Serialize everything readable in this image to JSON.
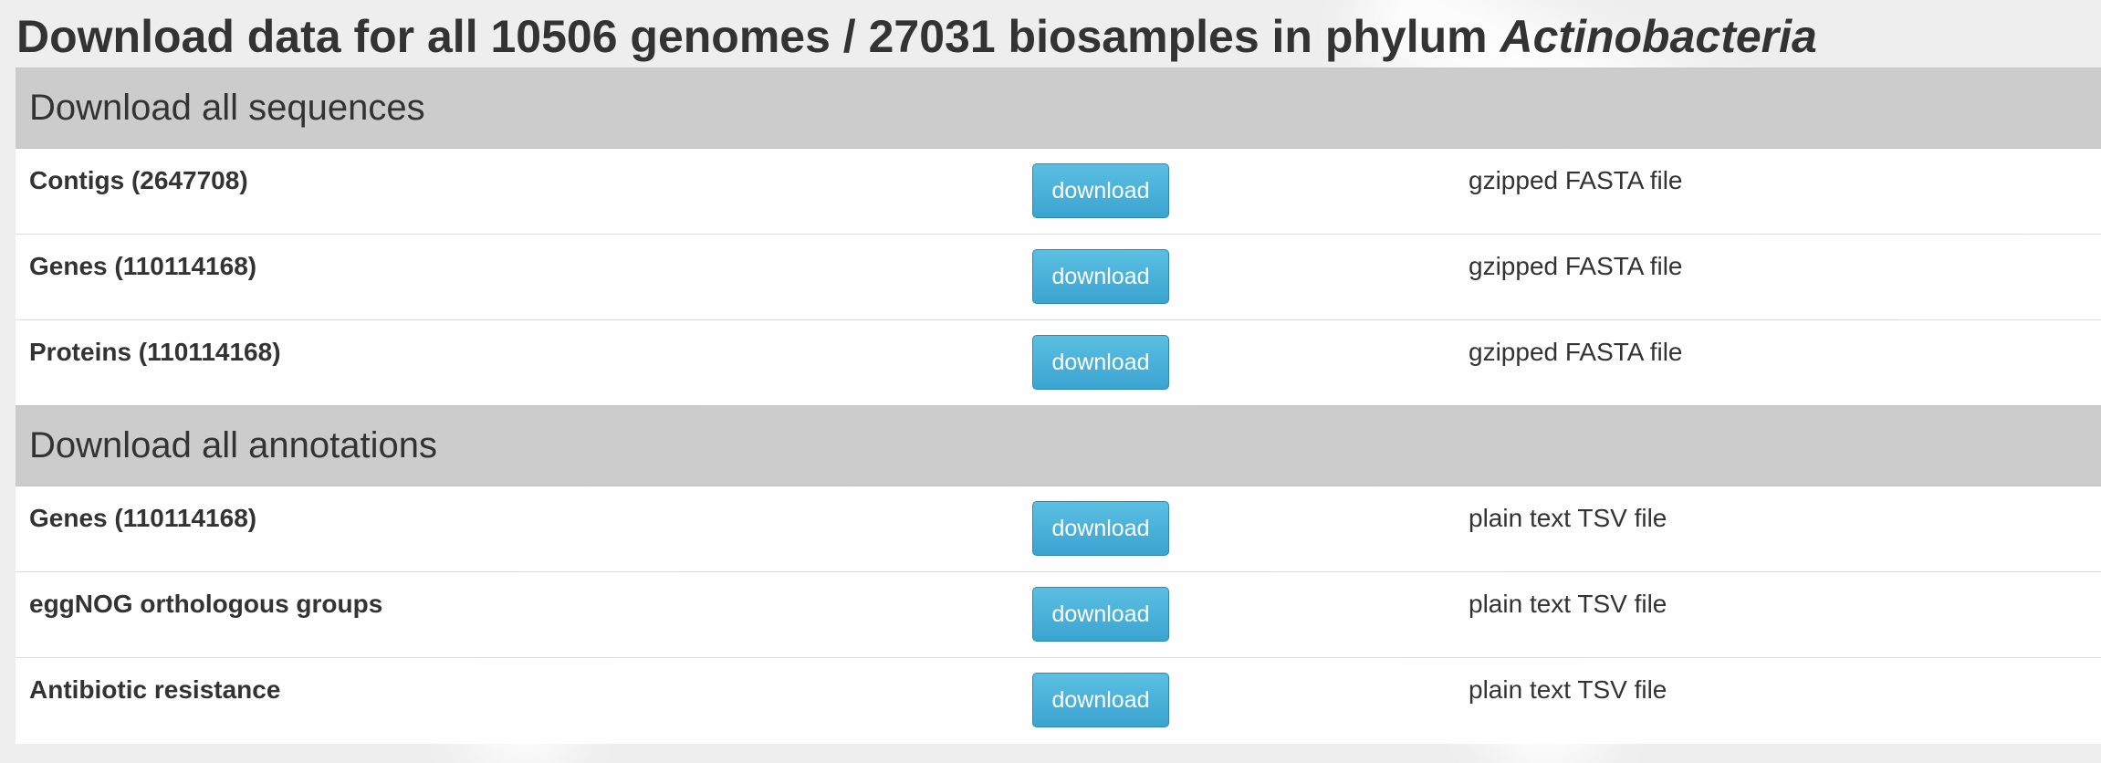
{
  "heading": {
    "prefix": "Download data for all 10506 genomes / 27031 biosamples in phylum ",
    "taxon": "Actinobacteria"
  },
  "sections": [
    {
      "title": "Download all sequences",
      "rows": [
        {
          "label": "Contigs (2647708)",
          "button": "download",
          "format": "gzipped FASTA file"
        },
        {
          "label": "Genes (110114168)",
          "button": "download",
          "format": "gzipped FASTA file"
        },
        {
          "label": "Proteins (110114168)",
          "button": "download",
          "format": "gzipped FASTA file"
        }
      ]
    },
    {
      "title": "Download all annotations",
      "rows": [
        {
          "label": "Genes (110114168)",
          "button": "download",
          "format": "plain text TSV file"
        },
        {
          "label": "eggNOG orthologous groups",
          "button": "download",
          "format": "plain text TSV file"
        },
        {
          "label": "Antibiotic resistance",
          "button": "download",
          "format": "plain text TSV file"
        }
      ]
    }
  ]
}
